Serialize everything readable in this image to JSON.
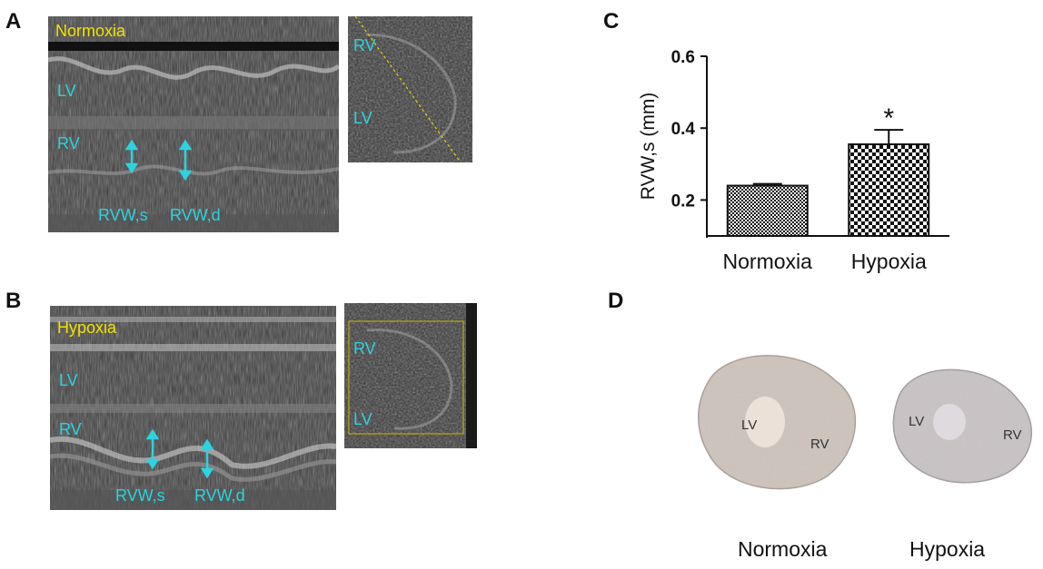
{
  "panels": {
    "a": {
      "letter": "A",
      "title": "Normoxia",
      "mmode_labels": {
        "lv": "LV",
        "rv": "RV",
        "rvws": "RVW,s",
        "rvwd": "RVW,d"
      },
      "bmode_labels": {
        "rv": "RV",
        "lv": "LV"
      }
    },
    "b": {
      "letter": "B",
      "title": "Hypoxia",
      "mmode_labels": {
        "lv": "LV",
        "rv": "RV",
        "rvws": "RVW,s",
        "rvwd": "RVW,d"
      },
      "bmode_labels": {
        "rv": "RV",
        "lv": "LV"
      }
    },
    "c": {
      "letter": "C"
    },
    "d": {
      "letter": "D",
      "left_section": {
        "lv": "LV",
        "rv": "RV",
        "caption": "Normoxia"
      },
      "right_section": {
        "lv": "LV",
        "rv": "RV",
        "caption": "Hypoxia"
      }
    }
  },
  "chart_data": {
    "type": "bar",
    "categories": [
      "Normoxia",
      "Hypoxia"
    ],
    "values": [
      0.24,
      0.355
    ],
    "errors": [
      0.005,
      0.04
    ],
    "ylabel": "RVW,s (mm)",
    "ylim": [
      0.1,
      0.6
    ],
    "yticks": [
      "0.2",
      "0.4",
      "0.6"
    ],
    "ytick_values": [
      0.2,
      0.4,
      0.6
    ],
    "significance": [
      "",
      "*"
    ],
    "fill_pattern": [
      "checker-fine",
      "checker-coarse"
    ],
    "grid": false
  }
}
